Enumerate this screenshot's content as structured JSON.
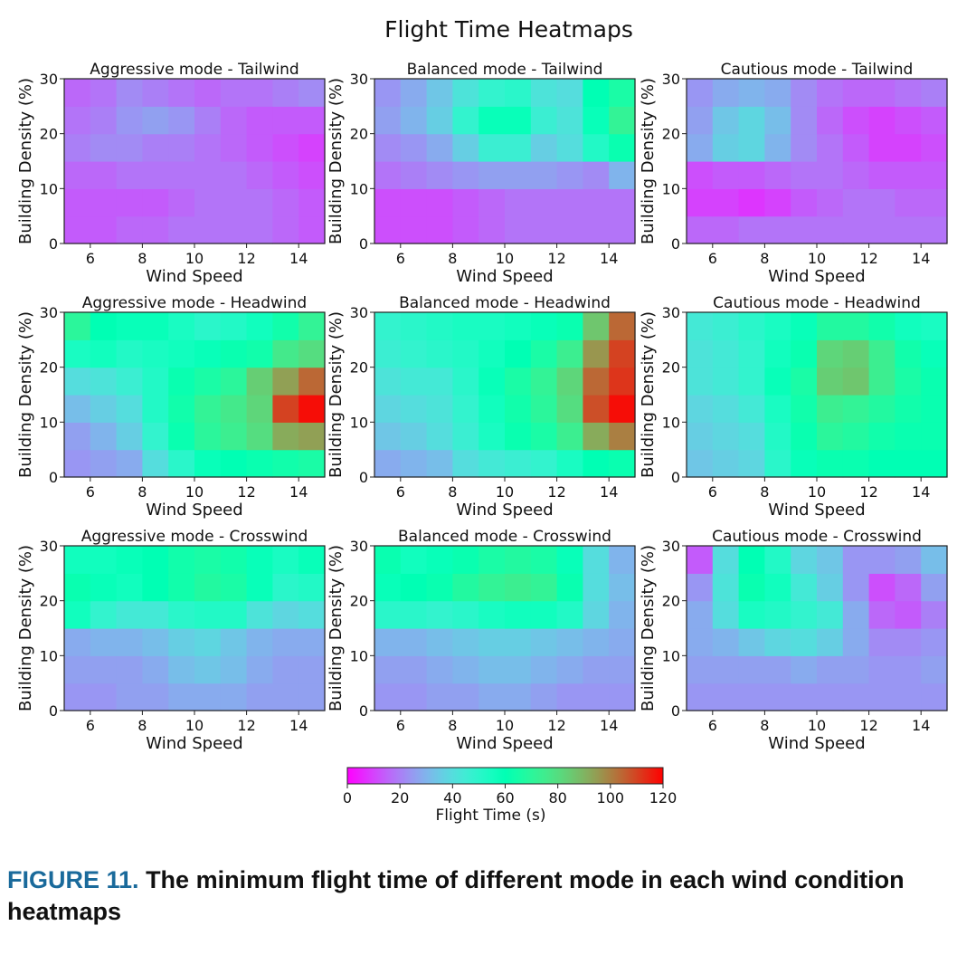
{
  "figure": {
    "title": "Flight Time Heatmaps",
    "caption_label": "FIGURE 11.",
    "caption_text": "The minimum flight time of different mode in each wind condition heatmaps"
  },
  "chart_data": [
    {
      "type": "heatmap",
      "title": "Aggressive mode - Tailwind",
      "xlabel": "Wind Speed",
      "ylabel": "Building Density (%)",
      "x": [
        5,
        6,
        7,
        8,
        9,
        10,
        11,
        12,
        13,
        14
      ],
      "y": [
        0,
        5,
        10,
        15,
        20,
        25
      ],
      "xlim": [
        5,
        15
      ],
      "ylim": [
        0,
        30
      ],
      "xticks": [
        6,
        8,
        10,
        12,
        14
      ],
      "yticks": [
        0,
        10,
        20,
        30
      ],
      "values": [
        [
          14,
          14,
          16,
          16,
          18,
          18,
          18,
          18,
          16,
          14
        ],
        [
          14,
          14,
          14,
          14,
          16,
          18,
          18,
          18,
          16,
          14
        ],
        [
          16,
          16,
          18,
          18,
          18,
          18,
          18,
          16,
          14,
          12
        ],
        [
          20,
          22,
          22,
          20,
          20,
          18,
          16,
          14,
          12,
          10
        ],
        [
          18,
          20,
          24,
          26,
          24,
          20,
          16,
          14,
          14,
          14
        ],
        [
          16,
          18,
          22,
          20,
          18,
          16,
          18,
          18,
          20,
          22
        ]
      ]
    },
    {
      "type": "heatmap",
      "title": "Balanced mode - Tailwind",
      "xlabel": "Wind Speed",
      "ylabel": "Building Density (%)",
      "x": [
        5,
        6,
        7,
        8,
        9,
        10,
        11,
        12,
        13,
        14
      ],
      "y": [
        0,
        5,
        10,
        15,
        20,
        25
      ],
      "xlim": [
        5,
        15
      ],
      "ylim": [
        0,
        30
      ],
      "xticks": [
        6,
        8,
        10,
        12,
        14
      ],
      "yticks": [
        0,
        10,
        20,
        30
      ],
      "values": [
        [
          12,
          12,
          12,
          14,
          16,
          18,
          18,
          18,
          18,
          18
        ],
        [
          12,
          12,
          12,
          14,
          16,
          18,
          18,
          18,
          18,
          18
        ],
        [
          18,
          20,
          22,
          24,
          26,
          26,
          26,
          24,
          22,
          30
        ],
        [
          22,
          24,
          28,
          36,
          46,
          46,
          36,
          40,
          52,
          62
        ],
        [
          26,
          30,
          36,
          48,
          58,
          58,
          46,
          42,
          58,
          72
        ],
        [
          24,
          28,
          34,
          42,
          48,
          50,
          42,
          40,
          60,
          66
        ]
      ]
    },
    {
      "type": "heatmap",
      "title": "Cautious mode - Tailwind",
      "xlabel": "Wind Speed",
      "ylabel": "Building Density (%)",
      "x": [
        5,
        6,
        7,
        8,
        9,
        10,
        11,
        12,
        13,
        14
      ],
      "y": [
        0,
        5,
        10,
        15,
        20,
        25
      ],
      "xlim": [
        5,
        15
      ],
      "ylim": [
        0,
        30
      ],
      "xticks": [
        6,
        8,
        10,
        12,
        14
      ],
      "yticks": [
        0,
        10,
        20,
        30
      ],
      "values": [
        [
          16,
          16,
          18,
          18,
          18,
          18,
          18,
          18,
          18,
          18
        ],
        [
          10,
          10,
          8,
          10,
          14,
          16,
          18,
          18,
          16,
          16
        ],
        [
          12,
          14,
          14,
          16,
          18,
          18,
          16,
          14,
          14,
          14
        ],
        [
          28,
          36,
          38,
          30,
          22,
          18,
          14,
          10,
          10,
          12
        ],
        [
          26,
          34,
          38,
          32,
          22,
          16,
          12,
          10,
          12,
          14
        ],
        [
          24,
          28,
          30,
          28,
          22,
          18,
          16,
          16,
          18,
          20
        ]
      ]
    },
    {
      "type": "heatmap",
      "title": "Aggressive mode - Headwind",
      "xlabel": "Wind Speed",
      "ylabel": "Building Density (%)",
      "x": [
        5,
        6,
        7,
        8,
        9,
        10,
        11,
        12,
        13,
        14
      ],
      "y": [
        0,
        5,
        10,
        15,
        20,
        25
      ],
      "xlim": [
        5,
        15
      ],
      "ylim": [
        0,
        30
      ],
      "xticks": [
        6,
        8,
        10,
        12,
        14
      ],
      "yticks": [
        0,
        10,
        20,
        30
      ],
      "values": [
        [
          24,
          26,
          28,
          40,
          50,
          58,
          60,
          62,
          64,
          66
        ],
        [
          26,
          30,
          36,
          48,
          62,
          70,
          74,
          80,
          92,
          94
        ],
        [
          32,
          36,
          40,
          52,
          64,
          72,
          76,
          82,
          110,
          118
        ],
        [
          40,
          42,
          46,
          52,
          62,
          66,
          70,
          84,
          94,
          104
        ],
        [
          54,
          56,
          52,
          54,
          56,
          58,
          62,
          64,
          76,
          80
        ],
        [
          70,
          60,
          58,
          58,
          54,
          50,
          52,
          56,
          64,
          72
        ]
      ]
    },
    {
      "type": "heatmap",
      "title": "Balanced mode - Headwind",
      "xlabel": "Wind Speed",
      "ylabel": "Building Density (%)",
      "x": [
        5,
        6,
        7,
        8,
        9,
        10,
        11,
        12,
        13,
        14
      ],
      "y": [
        0,
        5,
        10,
        15,
        20,
        25
      ],
      "xlim": [
        5,
        15
      ],
      "ylim": [
        0,
        30
      ],
      "xticks": [
        6,
        8,
        10,
        12,
        14
      ],
      "yticks": [
        0,
        10,
        20,
        30
      ],
      "values": [
        [
          28,
          30,
          32,
          40,
          44,
          46,
          48,
          54,
          60,
          62
        ],
        [
          34,
          36,
          40,
          46,
          54,
          62,
          66,
          74,
          92,
          100
        ],
        [
          38,
          40,
          42,
          48,
          56,
          64,
          70,
          80,
          108,
          118
        ],
        [
          42,
          44,
          44,
          50,
          58,
          66,
          72,
          82,
          104,
          112
        ],
        [
          46,
          48,
          50,
          52,
          56,
          60,
          66,
          74,
          96,
          110
        ],
        [
          48,
          50,
          52,
          54,
          54,
          56,
          58,
          62,
          86,
          104
        ]
      ]
    },
    {
      "type": "heatmap",
      "title": "Cautious mode - Headwind",
      "xlabel": "Wind Speed",
      "ylabel": "Building Density (%)",
      "x": [
        5,
        6,
        7,
        8,
        9,
        10,
        11,
        12,
        13,
        14
      ],
      "y": [
        0,
        5,
        10,
        15,
        20,
        25
      ],
      "xlim": [
        5,
        15
      ],
      "ylim": [
        0,
        30
      ],
      "xticks": [
        6,
        8,
        10,
        12,
        14
      ],
      "yticks": [
        0,
        10,
        20,
        30
      ],
      "values": [
        [
          34,
          36,
          38,
          50,
          58,
          62,
          62,
          60,
          60,
          60
        ],
        [
          36,
          38,
          40,
          52,
          62,
          70,
          68,
          64,
          62,
          62
        ],
        [
          38,
          40,
          44,
          54,
          64,
          74,
          72,
          68,
          64,
          62
        ],
        [
          42,
          44,
          48,
          58,
          66,
          84,
          86,
          74,
          66,
          62
        ],
        [
          42,
          44,
          48,
          56,
          62,
          82,
          84,
          74,
          64,
          58
        ],
        [
          44,
          46,
          50,
          54,
          58,
          68,
          68,
          64,
          56,
          54
        ]
      ]
    },
    {
      "type": "heatmap",
      "title": "Aggressive mode - Crosswind",
      "xlabel": "Wind Speed",
      "ylabel": "Building Density (%)",
      "x": [
        5,
        6,
        7,
        8,
        9,
        10,
        11,
        12,
        13,
        14
      ],
      "y": [
        0,
        5,
        10,
        15,
        20,
        25
      ],
      "xlim": [
        5,
        15
      ],
      "ylim": [
        0,
        30
      ],
      "xticks": [
        6,
        8,
        10,
        12,
        14
      ],
      "yticks": [
        0,
        10,
        20,
        30
      ],
      "values": [
        [
          24,
          24,
          26,
          26,
          28,
          28,
          28,
          26,
          26,
          26
        ],
        [
          26,
          26,
          26,
          28,
          32,
          34,
          32,
          28,
          26,
          26
        ],
        [
          28,
          30,
          30,
          32,
          36,
          38,
          34,
          30,
          28,
          28
        ],
        [
          56,
          48,
          44,
          44,
          50,
          52,
          52,
          42,
          38,
          40
        ],
        [
          62,
          58,
          56,
          60,
          64,
          68,
          66,
          58,
          50,
          52
        ],
        [
          56,
          56,
          58,
          60,
          64,
          66,
          64,
          58,
          54,
          58
        ]
      ]
    },
    {
      "type": "heatmap",
      "title": "Balanced mode - Crosswind",
      "xlabel": "Wind Speed",
      "ylabel": "Building Density (%)",
      "x": [
        5,
        6,
        7,
        8,
        9,
        10,
        11,
        12,
        13,
        14
      ],
      "y": [
        0,
        5,
        10,
        15,
        20,
        25
      ],
      "xlim": [
        5,
        15
      ],
      "ylim": [
        0,
        30
      ],
      "xticks": [
        6,
        8,
        10,
        12,
        14
      ],
      "yticks": [
        0,
        10,
        20,
        30
      ],
      "values": [
        [
          24,
          24,
          26,
          26,
          28,
          28,
          26,
          24,
          24,
          24
        ],
        [
          26,
          26,
          28,
          30,
          32,
          32,
          30,
          28,
          26,
          26
        ],
        [
          30,
          30,
          32,
          34,
          36,
          36,
          34,
          32,
          30,
          28
        ],
        [
          50,
          50,
          48,
          50,
          54,
          56,
          56,
          52,
          38,
          30
        ],
        [
          58,
          60,
          62,
          68,
          72,
          74,
          72,
          62,
          40,
          32
        ],
        [
          62,
          56,
          58,
          62,
          66,
          68,
          66,
          58,
          40,
          30
        ]
      ]
    },
    {
      "type": "heatmap",
      "title": "Cautious mode - Crosswind",
      "xlabel": "Wind Speed",
      "ylabel": "Building Density (%)",
      "x": [
        5,
        6,
        7,
        8,
        9,
        10,
        11,
        12,
        13,
        14
      ],
      "y": [
        0,
        5,
        10,
        15,
        20,
        25
      ],
      "xlim": [
        5,
        15
      ],
      "ylim": [
        0,
        30
      ],
      "xticks": [
        6,
        8,
        10,
        12,
        14
      ],
      "yticks": [
        0,
        10,
        20,
        30
      ],
      "values": [
        [
          24,
          24,
          24,
          24,
          24,
          24,
          24,
          24,
          24,
          24
        ],
        [
          26,
          26,
          26,
          26,
          28,
          26,
          26,
          24,
          24,
          26
        ],
        [
          28,
          30,
          34,
          38,
          40,
          36,
          28,
          22,
          22,
          24
        ],
        [
          28,
          40,
          54,
          52,
          48,
          44,
          28,
          16,
          14,
          20
        ],
        [
          24,
          42,
          62,
          56,
          44,
          36,
          24,
          12,
          16,
          26
        ],
        [
          14,
          40,
          60,
          52,
          38,
          34,
          24,
          24,
          26,
          32
        ]
      ]
    }
  ],
  "colorbar": {
    "label": "Flight Time (s)",
    "min": 0,
    "max": 120,
    "ticks": [
      0,
      20,
      40,
      60,
      80,
      100,
      120
    ],
    "colormap": "rainbow"
  }
}
